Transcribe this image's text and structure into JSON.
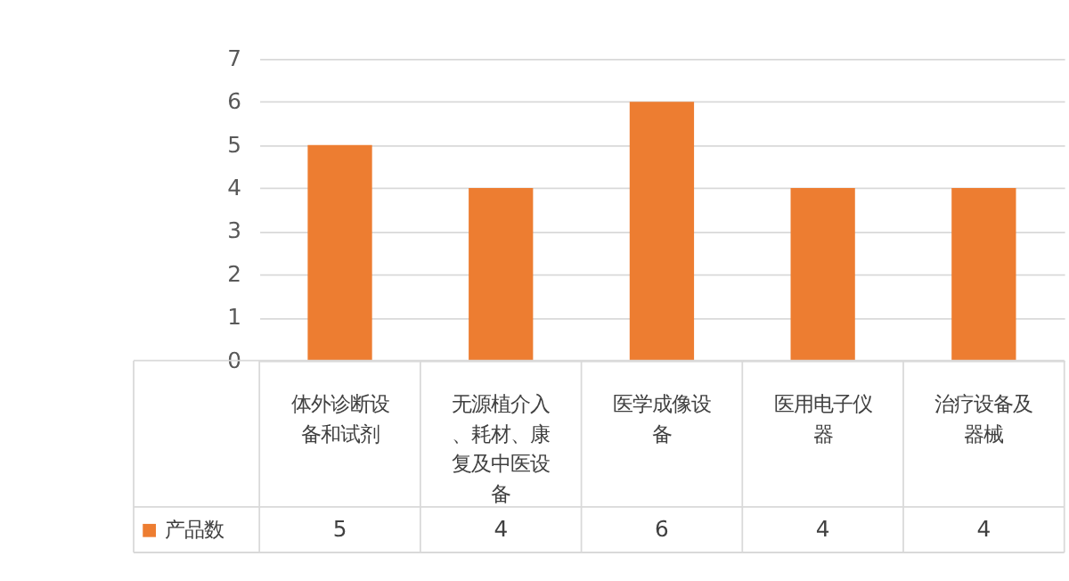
{
  "chart_data": {
    "type": "bar",
    "categories": [
      "体外诊断设备和试剂",
      "无源植介入、耗材、康复及中医设备",
      "医学成像设备",
      "医用电子仪器",
      "治疗设备及器械"
    ],
    "series": [
      {
        "name": "产品数",
        "color": "#ed7d31",
        "values": [
          5,
          4,
          6,
          4,
          4
        ]
      }
    ],
    "ylim": [
      0,
      7
    ],
    "yticks": [
      0,
      1,
      2,
      3,
      4,
      5,
      6,
      7
    ],
    "grid": "y",
    "legend": "bottom left",
    "data_labels": true
  }
}
